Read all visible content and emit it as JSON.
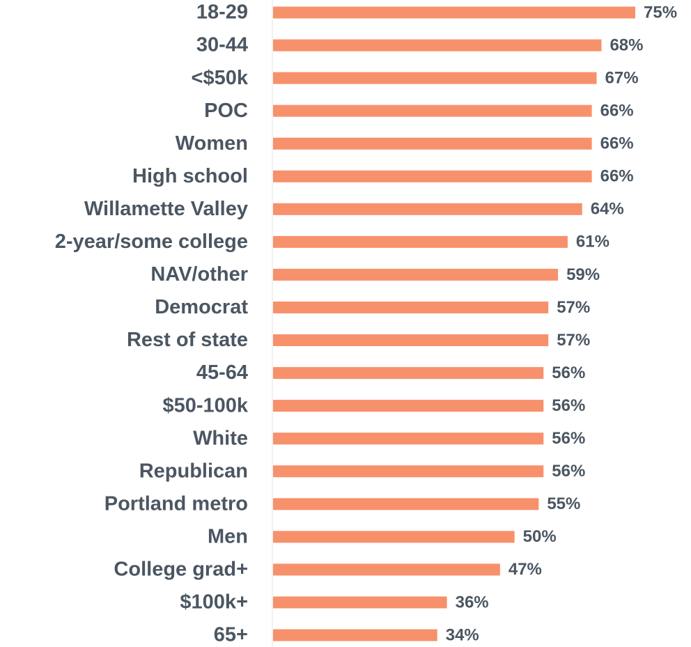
{
  "chart_data": {
    "type": "bar",
    "orientation": "horizontal",
    "color": "#f7916b",
    "categories": [
      "18-29",
      "30-44",
      "<$50k",
      "POC",
      "Women",
      "High school",
      "Willamette Valley",
      "2-year/some college",
      "NAV/other",
      "Democrat",
      "Rest of state",
      "45-64",
      "$50-100k",
      "White",
      "Republican",
      "Portland metro",
      "Men",
      "College grad+",
      "$100k+",
      "65+"
    ],
    "values": [
      75,
      68,
      67,
      66,
      66,
      66,
      64,
      61,
      59,
      57,
      57,
      56,
      56,
      56,
      56,
      55,
      50,
      47,
      36,
      34
    ],
    "value_labels": [
      "75%",
      "68%",
      "67%",
      "66%",
      "66%",
      "66%",
      "64%",
      "61%",
      "59%",
      "57%",
      "57%",
      "56%",
      "56%",
      "56%",
      "56%",
      "55%",
      "50%",
      "47%",
      "36%",
      "34%"
    ]
  }
}
